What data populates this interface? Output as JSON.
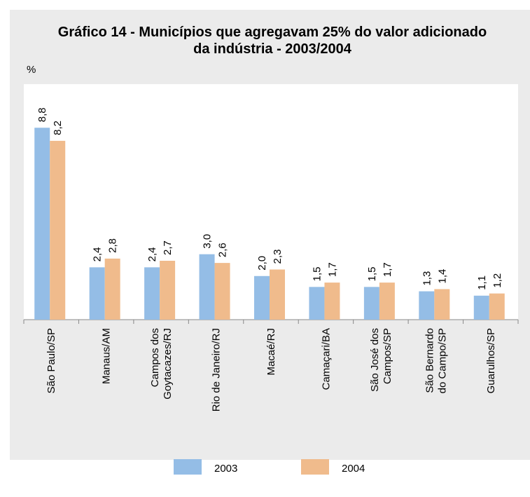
{
  "chart_data": {
    "type": "bar",
    "title": "Gráfico 14 - Municípios que agregavam 25% do valor adicionado\nda indústria - 2003/2004",
    "y_label": "%",
    "categories": [
      "São Paulo/SP",
      "Manaus/AM",
      "Campos dos\nGoytacazes/RJ",
      "Rio de Janeiro/RJ",
      "Macaé/RJ",
      "Camaçari/BA",
      "São José dos\nCampos/SP",
      "São Bernardo\ndo Campo/SP",
      "Guarulhos/SP"
    ],
    "series": [
      {
        "name": "2003",
        "color": "#94bde6",
        "values": [
          8.8,
          2.4,
          2.4,
          3.0,
          2.0,
          1.5,
          1.5,
          1.3,
          1.1
        ],
        "value_labels": [
          "8,8",
          "2,4",
          "2,4",
          "3,0",
          "2,0",
          "1,5",
          "1,5",
          "1,3",
          "1,1"
        ]
      },
      {
        "name": "2004",
        "color": "#f0bb8c",
        "values": [
          8.2,
          2.8,
          2.7,
          2.6,
          2.3,
          1.7,
          1.7,
          1.4,
          1.2
        ],
        "value_labels": [
          "8,2",
          "2,8",
          "2,7",
          "2,6",
          "2,3",
          "1,7",
          "1,7",
          "1,4",
          "1,2"
        ]
      }
    ],
    "ylim": [
      0,
      10.8
    ],
    "legend": "bottom"
  }
}
